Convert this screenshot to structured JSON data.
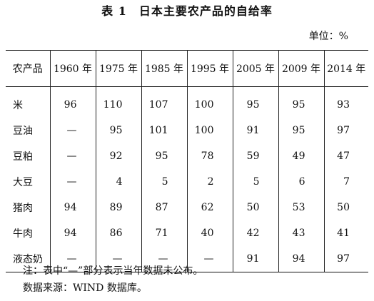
{
  "title": "表 1　日本主要农产品的自给率",
  "unit": "单位：%",
  "table": {
    "header": [
      "农产品",
      "1960 年",
      "1975 年",
      "1985 年",
      "1995 年",
      "2005 年",
      "2009 年",
      "2014 年"
    ],
    "rows": [
      [
        "米",
        "96",
        "110",
        "107",
        "100",
        "95",
        "95",
        "93"
      ],
      [
        "豆油",
        "—",
        "95",
        "101",
        "100",
        "91",
        "95",
        "97"
      ],
      [
        "豆粕",
        "—",
        "92",
        "95",
        "78",
        "59",
        "49",
        "47"
      ],
      [
        "大豆",
        "—",
        "4",
        "5",
        "2",
        "5",
        "6",
        "7"
      ],
      [
        "猪肉",
        "94",
        "89",
        "87",
        "62",
        "50",
        "53",
        "50"
      ],
      [
        "牛肉",
        "94",
        "86",
        "71",
        "40",
        "42",
        "43",
        "41"
      ],
      [
        "液态奶",
        "—",
        "—",
        "—",
        "—",
        "91",
        "94",
        "97"
      ]
    ]
  },
  "notes": {
    "note": "注：表中“—”部分表示当年数据未公布。",
    "source": "数据来源：WIND 数据库。"
  }
}
